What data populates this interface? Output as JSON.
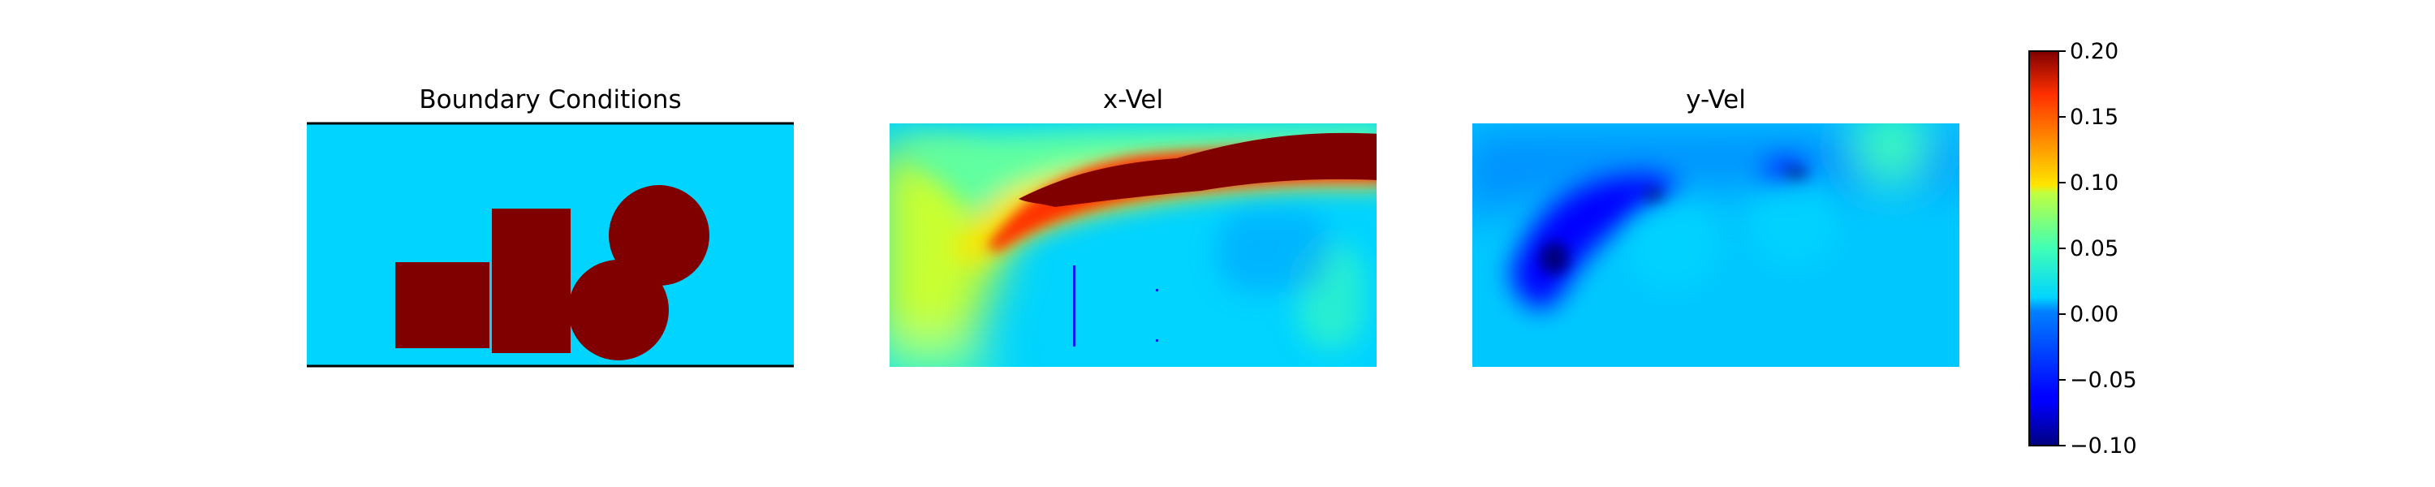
{
  "chart_data": [
    {
      "type": "heatmap",
      "title": "Boundary Conditions",
      "description_values": {
        "fluid": 0.0,
        "obstacle": 0.2
      },
      "boundary_walls": [
        "top",
        "bottom"
      ],
      "obstacles": [
        {
          "shape": "rectangle",
          "value": 0.2
        },
        {
          "shape": "rectangle",
          "value": 0.2
        },
        {
          "shape": "circle",
          "value": 0.2
        },
        {
          "shape": "circle",
          "value": 0.2
        }
      ]
    },
    {
      "type": "heatmap",
      "title": "x-Vel",
      "value_range": [
        -0.1,
        0.2
      ],
      "features": [
        "high-velocity jet over obstacles (~0.2)",
        "moderate inflow region on left (~0.08)",
        "near-zero wake below"
      ]
    },
    {
      "type": "heatmap",
      "title": "y-Vel",
      "value_range": [
        -0.1,
        0.2
      ],
      "features": [
        "strong negative pocket left of obstacles (~-0.09)",
        "small positive region top-right (~0.03)"
      ]
    }
  ],
  "colorbar": {
    "colormap": "jet",
    "vmin": -0.1,
    "vmax": 0.2,
    "ticks": [
      "0.20",
      "0.15",
      "0.10",
      "0.05",
      "0.00",
      "−0.05",
      "−0.10"
    ],
    "tick_values": [
      0.2,
      0.15,
      0.1,
      0.05,
      0.0,
      -0.05,
      -0.1
    ]
  },
  "colors": {
    "fluid": "#00d4ff",
    "obstacle": "#800000",
    "boundary": "#000000"
  }
}
